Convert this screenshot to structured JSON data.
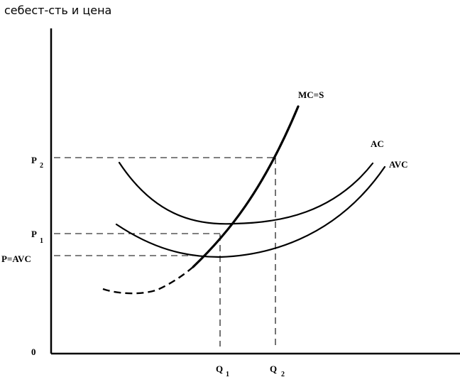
{
  "y_axis_label": "себест-сть и цена",
  "origin_label": "0",
  "price_labels": {
    "p2": "P",
    "p2_sub": "2",
    "p1": "P",
    "p1_sub": "1",
    "p_avc": "P=AVC"
  },
  "quantity_labels": {
    "q1": "Q",
    "q1_sub": "1",
    "q2": "Q",
    "q2_sub": "2"
  },
  "curve_labels": {
    "mc": "MC=S",
    "ac": "AC",
    "avc": "AVC"
  }
}
